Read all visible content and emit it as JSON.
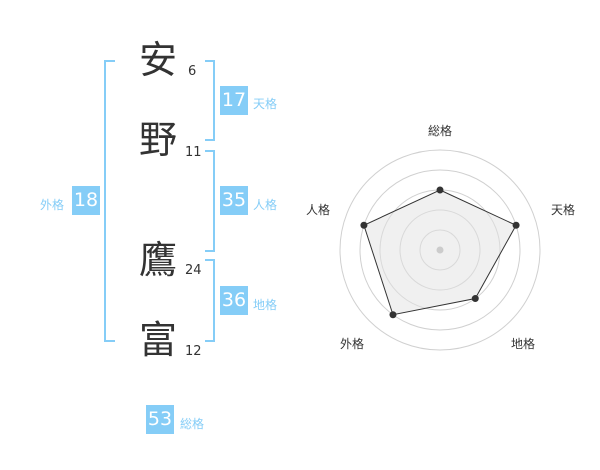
{
  "name": {
    "chars": [
      {
        "char": "安",
        "strokes": "6"
      },
      {
        "char": "野",
        "strokes": "11"
      },
      {
        "char": "鷹",
        "strokes": "24"
      },
      {
        "char": "富",
        "strokes": "12"
      }
    ]
  },
  "kaku": {
    "tenkaku": {
      "label": "天格",
      "value": "17"
    },
    "jinkaku": {
      "label": "人格",
      "value": "35"
    },
    "chikaku": {
      "label": "地格",
      "value": "36"
    },
    "gaikaku": {
      "label": "外格",
      "value": "18"
    },
    "soukaku": {
      "label": "総格",
      "value": "53"
    }
  },
  "colors": {
    "accent": "#85cdf7",
    "text": "#333333",
    "radar_fill": "#f0f0f0"
  },
  "chart_data": {
    "type": "radar",
    "axes": [
      "総格",
      "天格",
      "地格",
      "外格",
      "人格"
    ],
    "values": [
      3,
      4,
      3,
      4,
      4
    ],
    "range": [
      0,
      5
    ],
    "rings": 5
  }
}
